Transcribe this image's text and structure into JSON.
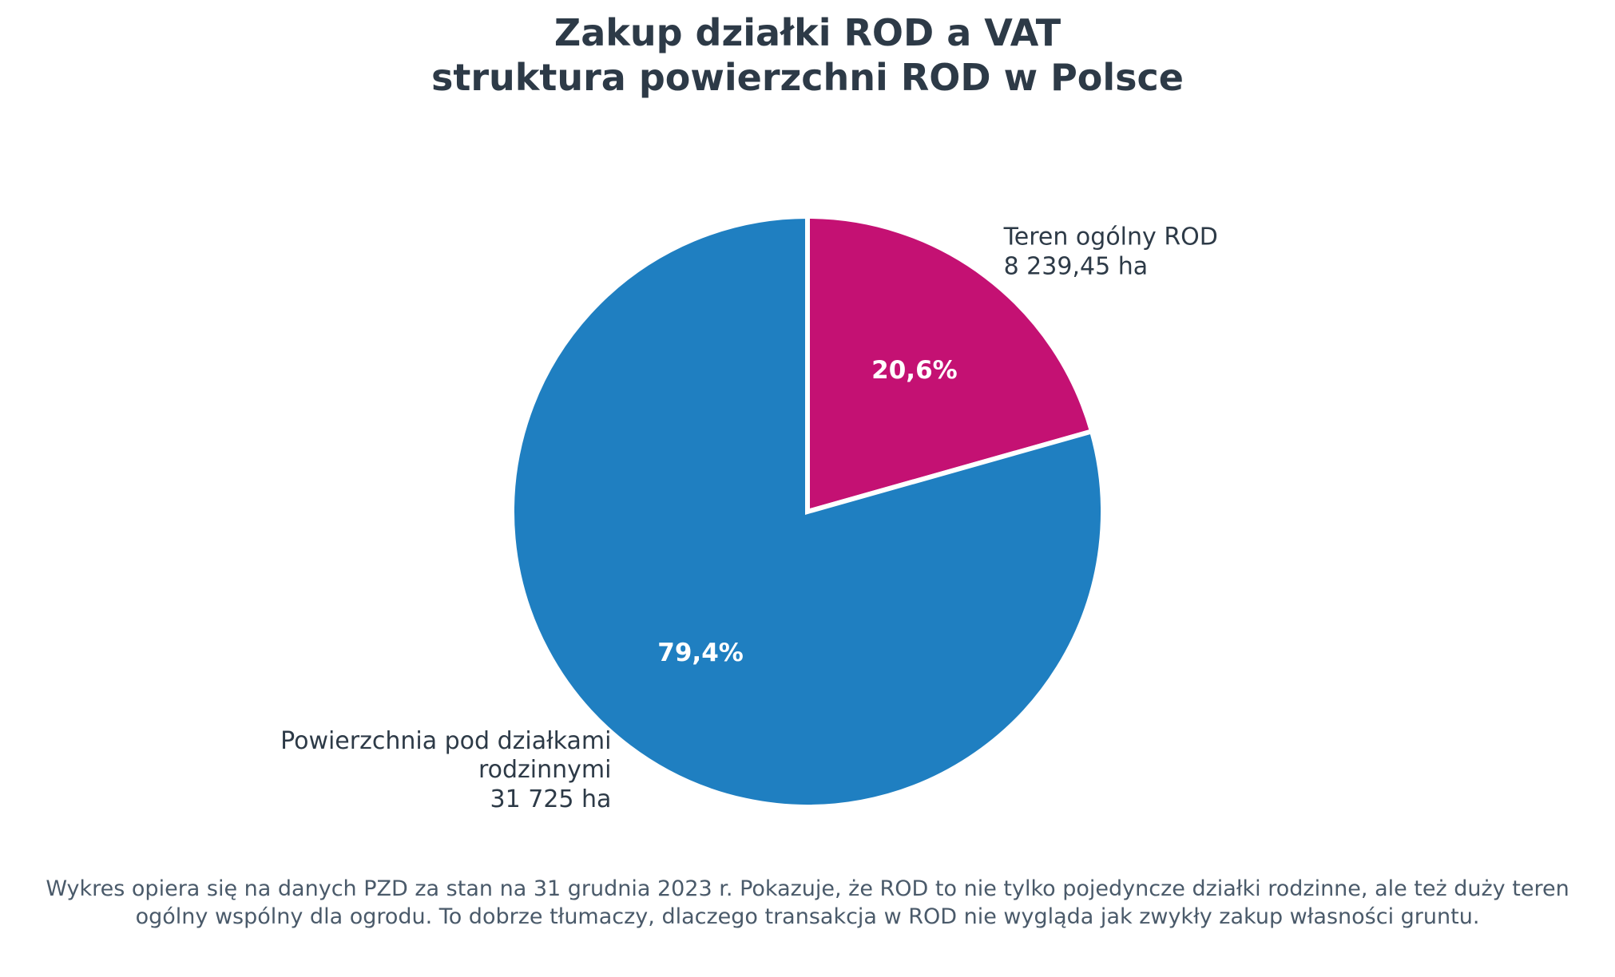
{
  "chart_data": {
    "type": "pie",
    "title": "Zakup działki ROD a VAT",
    "subtitle": "struktura powierzchni ROD w Polsce",
    "categories": [
      "Teren ogólny ROD",
      "Powierzchnia pod działkami\nrodzinnymi"
    ],
    "values": [
      8239.45,
      31725
    ],
    "value_labels": [
      "8 239,45 ha",
      "31 725 ha"
    ],
    "percent_labels": [
      "20,6%",
      "79,4%"
    ],
    "colors": [
      "#c41173",
      "#1f7fc1"
    ],
    "start_angle": 90,
    "clockwise": true,
    "note": "Wykres opiera się na danych PZD za stan na 31 grudnia 2023 r. Pokazuje, że ROD to nie tylko pojedyncze działki rodzinne, ale też duży teren ogólny wspólny dla ogrodu. To dobrze tłumaczy, dlaczego transakcja w ROD nie wygląda jak zwykły zakup własności gruntu."
  }
}
